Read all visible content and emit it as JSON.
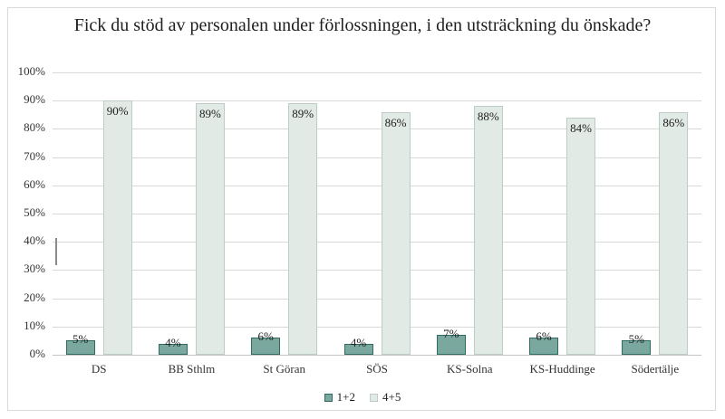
{
  "chart": {
    "title": "Fick du stöd av personalen under förlossningen, i den utsträckning du önskade?"
  },
  "chart_data": {
    "type": "bar",
    "title": "Fick du stöd av personalen under förlossningen, i den utsträckning du önskade?",
    "categories": [
      "DS",
      "BB Sthlm",
      "St Göran",
      "SÖS",
      "KS-Solna",
      "KS-Huddinge",
      "Södertälje"
    ],
    "series": [
      {
        "name": "1+2",
        "values": [
          5,
          4,
          6,
          4,
          7,
          6,
          5
        ],
        "fill": "#7aa89f",
        "border": "#2e6b61"
      },
      {
        "name": "4+5",
        "values": [
          90,
          89,
          89,
          86,
          88,
          84,
          86
        ],
        "fill": "#e2eae6",
        "border": "#bccdc6"
      }
    ],
    "data_labels": [
      [
        "5%",
        "4%",
        "6%",
        "4%",
        "7%",
        "6%",
        "5%"
      ],
      [
        "90%",
        "89%",
        "89%",
        "86%",
        "88%",
        "84%",
        "86%"
      ]
    ],
    "value_suffix": "%",
    "xlabel": "",
    "ylabel": "",
    "ylim": [
      0,
      100
    ],
    "y_ticks": [
      "0%",
      "10%",
      "20%",
      "30%",
      "40%",
      "50%",
      "60%",
      "70%",
      "80%",
      "90%",
      "100%"
    ],
    "grid": true,
    "legend_position": "bottom",
    "colors": {
      "gridline": "#d9d9d9",
      "axis": "#c4c4c4",
      "text": "#333333"
    }
  }
}
